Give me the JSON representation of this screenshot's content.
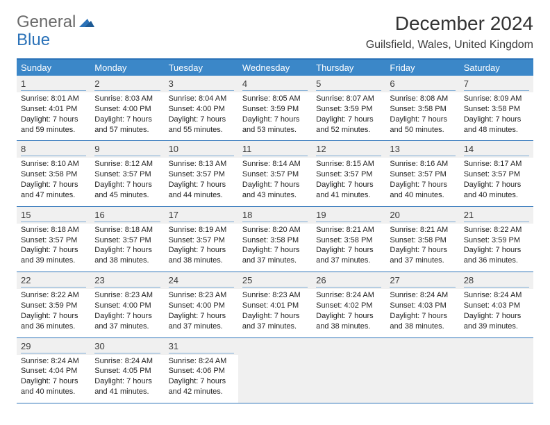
{
  "logo": {
    "word1": "General",
    "word2": "Blue"
  },
  "title": "December 2024",
  "location": "Guilsfield, Wales, United Kingdom",
  "colors": {
    "brand_blue": "#2b72b8",
    "header_bg": "#3b87c8",
    "cell_bg": "#f0f0f0",
    "daynum_border": "#7aa9d4"
  },
  "day_headers": [
    "Sunday",
    "Monday",
    "Tuesday",
    "Wednesday",
    "Thursday",
    "Friday",
    "Saturday"
  ],
  "weeks": [
    [
      {
        "n": "1",
        "sr": "Sunrise: 8:01 AM",
        "ss": "Sunset: 4:01 PM",
        "dl": "Daylight: 7 hours and 59 minutes."
      },
      {
        "n": "2",
        "sr": "Sunrise: 8:03 AM",
        "ss": "Sunset: 4:00 PM",
        "dl": "Daylight: 7 hours and 57 minutes."
      },
      {
        "n": "3",
        "sr": "Sunrise: 8:04 AM",
        "ss": "Sunset: 4:00 PM",
        "dl": "Daylight: 7 hours and 55 minutes."
      },
      {
        "n": "4",
        "sr": "Sunrise: 8:05 AM",
        "ss": "Sunset: 3:59 PM",
        "dl": "Daylight: 7 hours and 53 minutes."
      },
      {
        "n": "5",
        "sr": "Sunrise: 8:07 AM",
        "ss": "Sunset: 3:59 PM",
        "dl": "Daylight: 7 hours and 52 minutes."
      },
      {
        "n": "6",
        "sr": "Sunrise: 8:08 AM",
        "ss": "Sunset: 3:58 PM",
        "dl": "Daylight: 7 hours and 50 minutes."
      },
      {
        "n": "7",
        "sr": "Sunrise: 8:09 AM",
        "ss": "Sunset: 3:58 PM",
        "dl": "Daylight: 7 hours and 48 minutes."
      }
    ],
    [
      {
        "n": "8",
        "sr": "Sunrise: 8:10 AM",
        "ss": "Sunset: 3:58 PM",
        "dl": "Daylight: 7 hours and 47 minutes."
      },
      {
        "n": "9",
        "sr": "Sunrise: 8:12 AM",
        "ss": "Sunset: 3:57 PM",
        "dl": "Daylight: 7 hours and 45 minutes."
      },
      {
        "n": "10",
        "sr": "Sunrise: 8:13 AM",
        "ss": "Sunset: 3:57 PM",
        "dl": "Daylight: 7 hours and 44 minutes."
      },
      {
        "n": "11",
        "sr": "Sunrise: 8:14 AM",
        "ss": "Sunset: 3:57 PM",
        "dl": "Daylight: 7 hours and 43 minutes."
      },
      {
        "n": "12",
        "sr": "Sunrise: 8:15 AM",
        "ss": "Sunset: 3:57 PM",
        "dl": "Daylight: 7 hours and 41 minutes."
      },
      {
        "n": "13",
        "sr": "Sunrise: 8:16 AM",
        "ss": "Sunset: 3:57 PM",
        "dl": "Daylight: 7 hours and 40 minutes."
      },
      {
        "n": "14",
        "sr": "Sunrise: 8:17 AM",
        "ss": "Sunset: 3:57 PM",
        "dl": "Daylight: 7 hours and 40 minutes."
      }
    ],
    [
      {
        "n": "15",
        "sr": "Sunrise: 8:18 AM",
        "ss": "Sunset: 3:57 PM",
        "dl": "Daylight: 7 hours and 39 minutes."
      },
      {
        "n": "16",
        "sr": "Sunrise: 8:18 AM",
        "ss": "Sunset: 3:57 PM",
        "dl": "Daylight: 7 hours and 38 minutes."
      },
      {
        "n": "17",
        "sr": "Sunrise: 8:19 AM",
        "ss": "Sunset: 3:57 PM",
        "dl": "Daylight: 7 hours and 38 minutes."
      },
      {
        "n": "18",
        "sr": "Sunrise: 8:20 AM",
        "ss": "Sunset: 3:58 PM",
        "dl": "Daylight: 7 hours and 37 minutes."
      },
      {
        "n": "19",
        "sr": "Sunrise: 8:21 AM",
        "ss": "Sunset: 3:58 PM",
        "dl": "Daylight: 7 hours and 37 minutes."
      },
      {
        "n": "20",
        "sr": "Sunrise: 8:21 AM",
        "ss": "Sunset: 3:58 PM",
        "dl": "Daylight: 7 hours and 37 minutes."
      },
      {
        "n": "21",
        "sr": "Sunrise: 8:22 AM",
        "ss": "Sunset: 3:59 PM",
        "dl": "Daylight: 7 hours and 36 minutes."
      }
    ],
    [
      {
        "n": "22",
        "sr": "Sunrise: 8:22 AM",
        "ss": "Sunset: 3:59 PM",
        "dl": "Daylight: 7 hours and 36 minutes."
      },
      {
        "n": "23",
        "sr": "Sunrise: 8:23 AM",
        "ss": "Sunset: 4:00 PM",
        "dl": "Daylight: 7 hours and 37 minutes."
      },
      {
        "n": "24",
        "sr": "Sunrise: 8:23 AM",
        "ss": "Sunset: 4:00 PM",
        "dl": "Daylight: 7 hours and 37 minutes."
      },
      {
        "n": "25",
        "sr": "Sunrise: 8:23 AM",
        "ss": "Sunset: 4:01 PM",
        "dl": "Daylight: 7 hours and 37 minutes."
      },
      {
        "n": "26",
        "sr": "Sunrise: 8:24 AM",
        "ss": "Sunset: 4:02 PM",
        "dl": "Daylight: 7 hours and 38 minutes."
      },
      {
        "n": "27",
        "sr": "Sunrise: 8:24 AM",
        "ss": "Sunset: 4:03 PM",
        "dl": "Daylight: 7 hours and 38 minutes."
      },
      {
        "n": "28",
        "sr": "Sunrise: 8:24 AM",
        "ss": "Sunset: 4:03 PM",
        "dl": "Daylight: 7 hours and 39 minutes."
      }
    ],
    [
      {
        "n": "29",
        "sr": "Sunrise: 8:24 AM",
        "ss": "Sunset: 4:04 PM",
        "dl": "Daylight: 7 hours and 40 minutes."
      },
      {
        "n": "30",
        "sr": "Sunrise: 8:24 AM",
        "ss": "Sunset: 4:05 PM",
        "dl": "Daylight: 7 hours and 41 minutes."
      },
      {
        "n": "31",
        "sr": "Sunrise: 8:24 AM",
        "ss": "Sunset: 4:06 PM",
        "dl": "Daylight: 7 hours and 42 minutes."
      },
      null,
      null,
      null,
      null
    ]
  ]
}
